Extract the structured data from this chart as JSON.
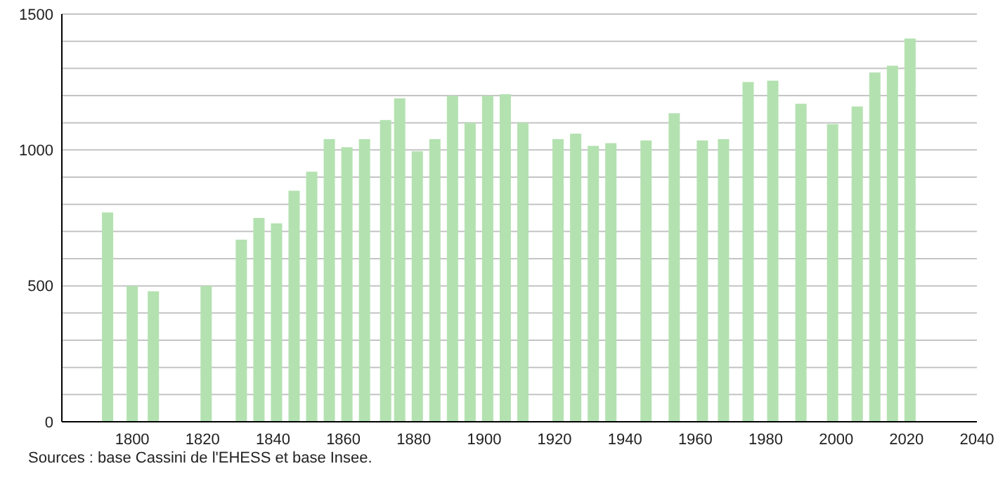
{
  "chart_data": {
    "type": "bar",
    "x": [
      1793,
      1800,
      1806,
      1821,
      1831,
      1836,
      1841,
      1846,
      1851,
      1856,
      1861,
      1866,
      1872,
      1876,
      1881,
      1886,
      1891,
      1896,
      1901,
      1906,
      1911,
      1921,
      1926,
      1931,
      1936,
      1946,
      1954,
      1962,
      1968,
      1975,
      1982,
      1990,
      1999,
      2006,
      2011,
      2016,
      2021
    ],
    "values": [
      770,
      500,
      480,
      500,
      670,
      750,
      730,
      850,
      920,
      1040,
      1010,
      1040,
      1110,
      1190,
      995,
      1040,
      1200,
      1100,
      1200,
      1205,
      1100,
      1040,
      1060,
      1015,
      1025,
      1035,
      1135,
      1035,
      1040,
      1250,
      1255,
      1170,
      1095,
      1160,
      1285,
      1310,
      1410
    ],
    "color": "#b3e2b0",
    "xlim": [
      1780,
      2040
    ],
    "xticks": [
      1800,
      1820,
      1840,
      1860,
      1880,
      1900,
      1920,
      1940,
      1960,
      1980,
      2000,
      2020,
      2040
    ],
    "ylim": [
      0,
      1500
    ],
    "yticks": [
      0,
      {
        "value": 100,
        "label": null
      },
      {
        "value": 200,
        "label": null
      },
      {
        "value": 300,
        "label": null
      },
      {
        "value": 400,
        "label": null
      },
      500,
      {
        "value": 600,
        "label": null
      },
      {
        "value": 700,
        "label": null
      },
      {
        "value": 800,
        "label": null
      },
      {
        "value": 900,
        "label": null
      },
      1000,
      {
        "value": 1100,
        "label": null
      },
      {
        "value": 1200,
        "label": null
      },
      {
        "value": 1300,
        "label": null
      },
      {
        "value": 1400,
        "label": null
      },
      1500
    ],
    "grid": "y",
    "annotations": [
      "Sources : base Cassini de l'EHESS et base Insee."
    ]
  }
}
